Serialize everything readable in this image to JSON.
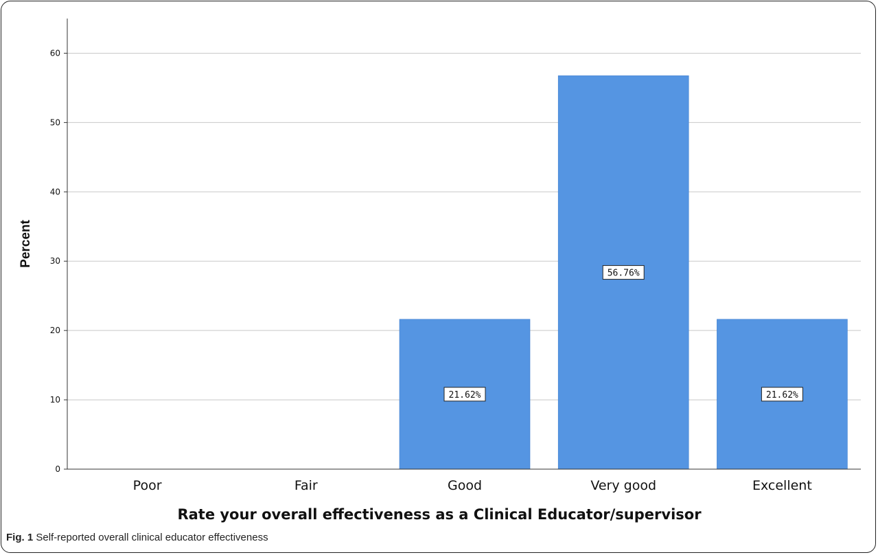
{
  "chart_data": {
    "type": "bar",
    "categories": [
      "Poor",
      "Fair",
      "Good",
      "Very good",
      "Excellent"
    ],
    "values": [
      0,
      0,
      21.62,
      56.76,
      21.62
    ],
    "data_labels": [
      "",
      "",
      "21.62%",
      "56.76%",
      "21.62%"
    ],
    "xlabel": "Rate your overall effectiveness as a Clinical Educator/supervisor",
    "ylabel": "Percent",
    "ylim": [
      0,
      65
    ],
    "yticks": [
      0,
      10,
      20,
      30,
      40,
      50,
      60
    ],
    "grid": true,
    "bar_color": "#5595e2"
  },
  "caption": {
    "label": "Fig. 1",
    "text": "Self-reported overall clinical educator effectiveness"
  }
}
